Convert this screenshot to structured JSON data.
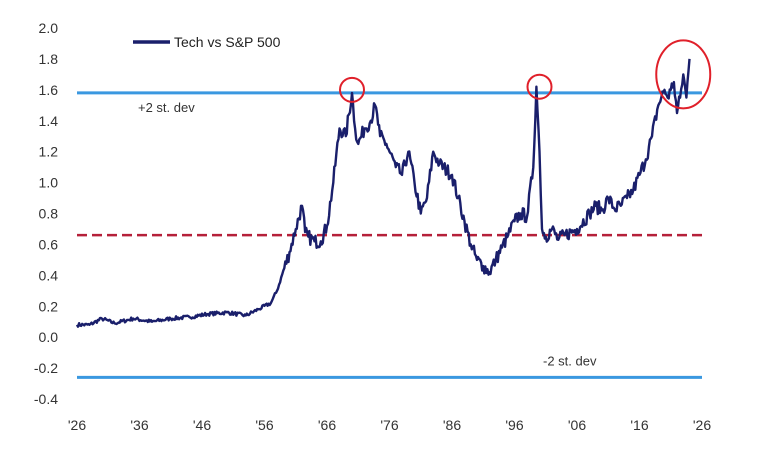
{
  "chart_data": {
    "type": "line",
    "title": "",
    "xlabel": "",
    "ylabel": "",
    "xlim": [
      1926,
      2026
    ],
    "ylim": [
      -0.4,
      2.0
    ],
    "x_tick_labels": [
      "'26",
      "'36",
      "'46",
      "'56",
      "'66",
      "'76",
      "'86",
      "'96",
      "'06",
      "'16",
      "'26"
    ],
    "y_tick_labels": [
      "2.0",
      "1.8",
      "1.6",
      "1.4",
      "1.2",
      "1.0",
      "0.8",
      "0.6",
      "0.4",
      "0.2",
      "0.0",
      "-0.2",
      "-0.4"
    ],
    "grid": false,
    "legend": {
      "position": "top-left"
    },
    "series": [
      {
        "name": "Tech vs S&P 500",
        "color": "#1a1f6b",
        "x": [
          1926,
          1928,
          1930,
          1932,
          1935,
          1938,
          1941,
          1944,
          1947,
          1950,
          1953,
          1955,
          1957,
          1958,
          1960,
          1961,
          1962,
          1962.5,
          1963,
          1964,
          1965,
          1966,
          1967,
          1968,
          1969,
          1970,
          1970.5,
          1971,
          1972,
          1973,
          1973.7,
          1974.5,
          1975.5,
          1977,
          1978,
          1979,
          1980,
          1981,
          1982,
          1983,
          1984,
          1986,
          1987,
          1988,
          1989,
          1990,
          1991,
          1992,
          1993,
          1994,
          1995,
          1996,
          1997,
          1998,
          1999,
          1999.5,
          2000,
          2000.4,
          2001,
          2002,
          2003,
          2004,
          2006,
          2008,
          2009,
          2010,
          2011,
          2012,
          2013,
          2014,
          2015,
          2016,
          2017,
          2018,
          2019,
          2020,
          2020.5,
          2021,
          2021.5,
          2022,
          2022.5,
          2023,
          2023.5,
          2024
        ],
        "values": [
          0.08,
          0.08,
          0.12,
          0.09,
          0.12,
          0.1,
          0.12,
          0.13,
          0.15,
          0.16,
          0.14,
          0.18,
          0.22,
          0.3,
          0.55,
          0.7,
          0.85,
          0.68,
          0.65,
          0.62,
          0.62,
          0.72,
          1.0,
          1.35,
          1.3,
          1.58,
          1.35,
          1.25,
          1.35,
          1.4,
          1.5,
          1.3,
          1.25,
          1.1,
          1.05,
          1.2,
          1.0,
          0.8,
          0.9,
          1.2,
          1.12,
          1.05,
          0.9,
          0.75,
          0.6,
          0.5,
          0.46,
          0.42,
          0.5,
          0.58,
          0.66,
          0.75,
          0.8,
          0.78,
          1.1,
          1.62,
          1.2,
          0.7,
          0.65,
          0.7,
          0.63,
          0.66,
          0.7,
          0.8,
          0.85,
          0.82,
          0.9,
          0.83,
          0.85,
          0.9,
          0.95,
          1.05,
          1.15,
          1.3,
          1.5,
          1.6,
          1.55,
          1.6,
          1.65,
          1.45,
          1.55,
          1.7,
          1.55,
          1.8
        ]
      }
    ],
    "reference_lines": [
      {
        "y": 1.58,
        "label": "+2 st. dev",
        "style": "solid",
        "color": "#3a98e0"
      },
      {
        "y": 0.66,
        "label": "",
        "style": "dashed",
        "color": "#b5203a"
      },
      {
        "y": -0.26,
        "label": "-2 st. dev",
        "style": "solid",
        "color": "#3a98e0"
      }
    ],
    "highlights": [
      {
        "x": 1970,
        "y": 1.6
      },
      {
        "x": 2000,
        "y": 1.62
      },
      {
        "x": 2023,
        "y": 1.7
      }
    ]
  }
}
